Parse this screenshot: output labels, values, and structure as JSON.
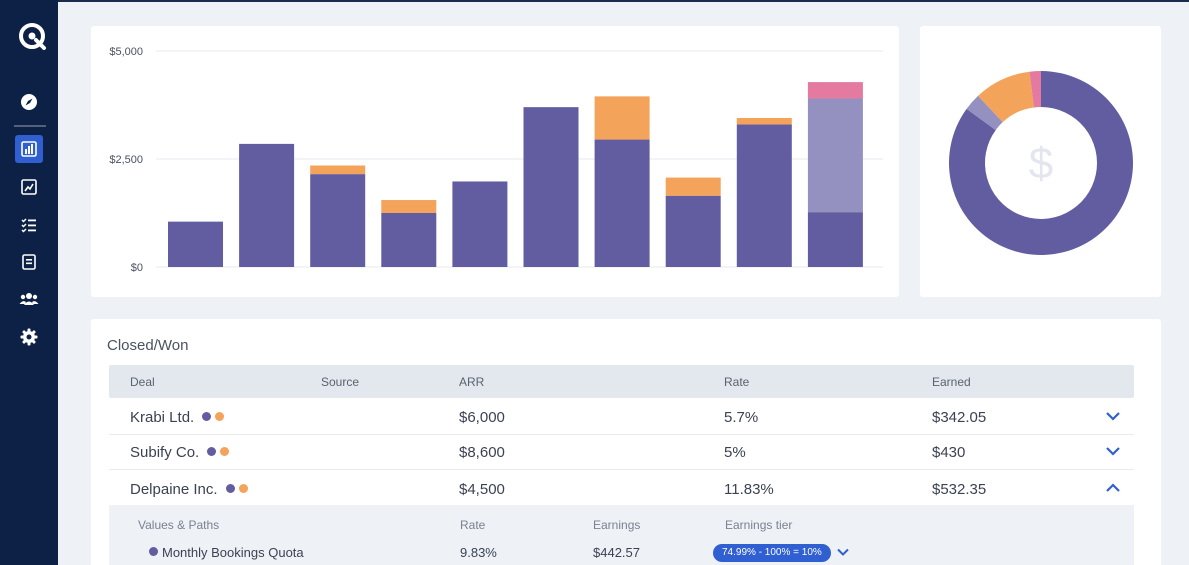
{
  "sidebar": {
    "items": [
      {
        "icon": "compass-icon"
      },
      {
        "icon": "bar-chart-icon",
        "active": true
      },
      {
        "icon": "trend-icon"
      },
      {
        "icon": "checklist-icon"
      },
      {
        "icon": "document-icon"
      },
      {
        "icon": "users-icon"
      },
      {
        "icon": "gear-icon"
      }
    ]
  },
  "chart_data": {
    "type": "bar",
    "stacked": true,
    "categories": [
      "",
      "",
      "",
      "",
      "",
      "",
      "",
      "",
      "",
      ""
    ],
    "y_ticks": [
      "$5,000",
      "$2,500",
      "$0"
    ],
    "ylim": [
      0,
      5000
    ],
    "grid": true,
    "series": [
      {
        "color": "#625ca1",
        "values": [
          1050,
          2850,
          2150,
          1250,
          1980,
          3700,
          2950,
          1650,
          3300,
          1270
        ]
      },
      {
        "color": "#9490c0",
        "values": [
          0,
          0,
          0,
          0,
          0,
          0,
          0,
          0,
          0,
          2630
        ]
      },
      {
        "color": "#f3a35a",
        "values": [
          0,
          0,
          200,
          300,
          0,
          0,
          1000,
          420,
          150,
          0
        ]
      },
      {
        "color": "#e47aa0",
        "values": [
          0,
          0,
          0,
          0,
          0,
          0,
          0,
          0,
          0,
          380
        ]
      }
    ]
  },
  "donut": {
    "center_icon": "dollar-icon",
    "slices": [
      {
        "value": 85,
        "color": "#625ca1"
      },
      {
        "value": 3,
        "color": "#9490c0"
      },
      {
        "value": 10,
        "color": "#f3a35a"
      },
      {
        "value": 2,
        "color": "#e47aa0"
      }
    ]
  },
  "table": {
    "title": "Closed/Won",
    "headers": {
      "deal": "Deal",
      "source": "Source",
      "arr": "ARR",
      "rate": "Rate",
      "earned": "Earned"
    },
    "rows": [
      {
        "deal": "Krabi Ltd.",
        "arr": "$6,000",
        "rate": "5.7%",
        "earned": "$342.05",
        "expanded": false
      },
      {
        "deal": "Subify Co.",
        "arr": "$8,600",
        "rate": "5%",
        "earned": "$430",
        "expanded": false
      },
      {
        "deal": "Delpaine Inc.",
        "arr": "$4,500",
        "rate": "11.83%",
        "earned": "$532.35",
        "expanded": true
      }
    ],
    "detail": {
      "headers": {
        "values_paths": "Values & Paths",
        "rate": "Rate",
        "earnings": "Earnings",
        "tier": "Earnings tier"
      },
      "rows": [
        {
          "name": "Monthly Bookings Quota",
          "rate": "9.83%",
          "earnings": "$442.57",
          "tier": "74.99% - 100% = 10%"
        }
      ]
    }
  }
}
